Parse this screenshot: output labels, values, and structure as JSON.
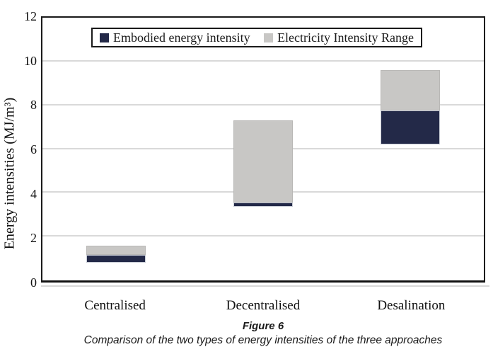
{
  "figure": {
    "caption_label": "Figure 6",
    "caption_text": "Comparison of the two types of energy intensities of the three approaches"
  },
  "chart_data": {
    "type": "bar",
    "subtype": "floating-range-columns",
    "title": "Figure 6",
    "caption": "Comparison of the two types of energy intensities of the three approaches",
    "ylabel": "Energy intensities (MJ/m³)",
    "xlabel": "",
    "categories": [
      "Centralised",
      "Decentralised",
      "Desalination"
    ],
    "series": [
      {
        "name": "Embodied energy intensity",
        "color": "#232948",
        "ranges": [
          [
            0.8,
            1.15
          ],
          [
            3.35,
            3.55
          ],
          [
            6.2,
            7.75
          ]
        ]
      },
      {
        "name": "Electricity Intensity Range",
        "color": "#c8c7c5",
        "ranges": [
          [
            1.15,
            1.6
          ],
          [
            3.55,
            7.3
          ],
          [
            7.75,
            9.6
          ]
        ]
      }
    ],
    "ylim": [
      0,
      12
    ],
    "yticks": [
      0,
      2,
      4,
      6,
      8,
      10,
      12
    ],
    "grid": "horizontal-light-gray",
    "legend_position": "inside-top-center",
    "colors": {
      "axis": "#1a1a1a",
      "gridline": "#d9d9d9",
      "background": "#ffffff"
    }
  }
}
